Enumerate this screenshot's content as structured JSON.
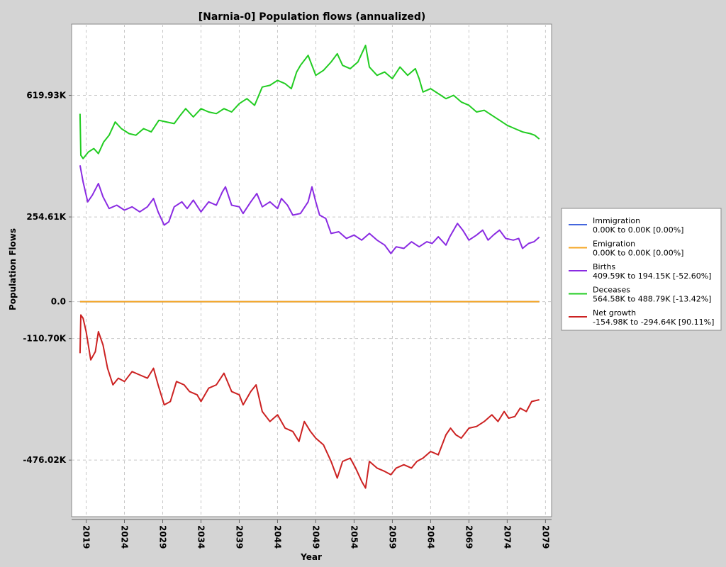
{
  "chart_data": {
    "type": "line",
    "title": "[Narnia-0] Population flows (annualized)",
    "xlabel": "Year",
    "ylabel": "Population Flows",
    "xlim": [
      2017.1,
      2079.8
    ],
    "ylim": [
      -646000,
      834000
    ],
    "grid": true,
    "legend_position": "right",
    "x_ticks": [
      2019,
      2024,
      2029,
      2034,
      2039,
      2044,
      2049,
      2054,
      2059,
      2064,
      2069,
      2074,
      2079
    ],
    "y_ticks": [
      {
        "value": 619930,
        "label": "619.93K"
      },
      {
        "value": 254610,
        "label": "254.61K"
      },
      {
        "value": 0,
        "label": "0.0"
      },
      {
        "value": -110700,
        "label": "-110.70K"
      },
      {
        "value": -476020,
        "label": "-476.02K"
      }
    ],
    "series": [
      {
        "name": "Immigration",
        "detail": "0.00K to 0.00K [0.00%]",
        "color": "#4466dd",
        "points": [
          [
            2018.2,
            0
          ],
          [
            2078.2,
            0
          ]
        ]
      },
      {
        "name": "Emigration",
        "detail": "0.00K to 0.00K [0.00%]",
        "color": "#f5a623",
        "points": [
          [
            2018.2,
            0
          ],
          [
            2078.2,
            0
          ]
        ]
      },
      {
        "name": "Births",
        "detail": "409.59K to 194.15K [-52.60%]",
        "color": "#8a2be2",
        "points": [
          [
            2018.2,
            409590
          ],
          [
            2018.6,
            360000
          ],
          [
            2019.2,
            300000
          ],
          [
            2019.8,
            320000
          ],
          [
            2020.6,
            355000
          ],
          [
            2021.2,
            315000
          ],
          [
            2022.0,
            280000
          ],
          [
            2023.0,
            290000
          ],
          [
            2024.0,
            275000
          ],
          [
            2025.0,
            285000
          ],
          [
            2026.0,
            270000
          ],
          [
            2027.0,
            285000
          ],
          [
            2027.8,
            310000
          ],
          [
            2028.4,
            270000
          ],
          [
            2029.2,
            230000
          ],
          [
            2029.8,
            240000
          ],
          [
            2030.5,
            285000
          ],
          [
            2031.5,
            300000
          ],
          [
            2032.2,
            280000
          ],
          [
            2033.0,
            305000
          ],
          [
            2034.0,
            270000
          ],
          [
            2035.0,
            300000
          ],
          [
            2036.0,
            290000
          ],
          [
            2036.8,
            330000
          ],
          [
            2037.2,
            345000
          ],
          [
            2038.0,
            290000
          ],
          [
            2039.0,
            285000
          ],
          [
            2039.5,
            265000
          ],
          [
            2040.5,
            300000
          ],
          [
            2041.3,
            325000
          ],
          [
            2042.0,
            285000
          ],
          [
            2043.0,
            300000
          ],
          [
            2044.0,
            280000
          ],
          [
            2044.5,
            310000
          ],
          [
            2045.3,
            290000
          ],
          [
            2046.0,
            260000
          ],
          [
            2047.0,
            265000
          ],
          [
            2048.0,
            300000
          ],
          [
            2048.5,
            345000
          ],
          [
            2049.0,
            300000
          ],
          [
            2049.5,
            260000
          ],
          [
            2050.3,
            250000
          ],
          [
            2051.0,
            205000
          ],
          [
            2052.0,
            210000
          ],
          [
            2053.0,
            190000
          ],
          [
            2054.0,
            200000
          ],
          [
            2055.0,
            185000
          ],
          [
            2056.0,
            205000
          ],
          [
            2057.0,
            185000
          ],
          [
            2058.0,
            170000
          ],
          [
            2058.8,
            145000
          ],
          [
            2059.5,
            165000
          ],
          [
            2060.5,
            160000
          ],
          [
            2061.5,
            180000
          ],
          [
            2062.5,
            165000
          ],
          [
            2063.5,
            180000
          ],
          [
            2064.2,
            175000
          ],
          [
            2065.0,
            195000
          ],
          [
            2066.0,
            170000
          ],
          [
            2066.5,
            195000
          ],
          [
            2067.5,
            235000
          ],
          [
            2068.2,
            215000
          ],
          [
            2069.0,
            185000
          ],
          [
            2070.0,
            200000
          ],
          [
            2070.8,
            215000
          ],
          [
            2071.5,
            185000
          ],
          [
            2072.2,
            200000
          ],
          [
            2073.0,
            215000
          ],
          [
            2073.8,
            190000
          ],
          [
            2074.8,
            185000
          ],
          [
            2075.5,
            190000
          ],
          [
            2076.0,
            160000
          ],
          [
            2076.8,
            175000
          ],
          [
            2077.5,
            180000
          ],
          [
            2078.2,
            194150
          ]
        ]
      },
      {
        "name": "Deceases",
        "detail": "564.58K to 488.79K [-13.42%]",
        "color": "#22cc22",
        "points": [
          [
            2018.2,
            564580
          ],
          [
            2018.3,
            440000
          ],
          [
            2018.6,
            430000
          ],
          [
            2019.3,
            450000
          ],
          [
            2020.0,
            460000
          ],
          [
            2020.6,
            445000
          ],
          [
            2021.3,
            480000
          ],
          [
            2022.0,
            500000
          ],
          [
            2022.8,
            540000
          ],
          [
            2023.6,
            520000
          ],
          [
            2024.6,
            505000
          ],
          [
            2025.5,
            500000
          ],
          [
            2026.5,
            520000
          ],
          [
            2027.5,
            510000
          ],
          [
            2028.5,
            545000
          ],
          [
            2029.5,
            540000
          ],
          [
            2030.5,
            535000
          ],
          [
            2031.3,
            560000
          ],
          [
            2032.0,
            580000
          ],
          [
            2033.0,
            555000
          ],
          [
            2034.0,
            580000
          ],
          [
            2035.0,
            570000
          ],
          [
            2036.0,
            565000
          ],
          [
            2037.0,
            580000
          ],
          [
            2038.0,
            570000
          ],
          [
            2039.0,
            595000
          ],
          [
            2040.0,
            610000
          ],
          [
            2041.0,
            590000
          ],
          [
            2042.0,
            645000
          ],
          [
            2043.0,
            650000
          ],
          [
            2044.0,
            665000
          ],
          [
            2045.0,
            655000
          ],
          [
            2045.8,
            640000
          ],
          [
            2046.5,
            690000
          ],
          [
            2047.0,
            710000
          ],
          [
            2048.0,
            740000
          ],
          [
            2049.0,
            680000
          ],
          [
            2050.0,
            695000
          ],
          [
            2051.0,
            720000
          ],
          [
            2051.8,
            745000
          ],
          [
            2052.5,
            710000
          ],
          [
            2053.5,
            700000
          ],
          [
            2054.5,
            720000
          ],
          [
            2055.5,
            770000
          ],
          [
            2056.0,
            705000
          ],
          [
            2057.0,
            680000
          ],
          [
            2058.0,
            690000
          ],
          [
            2059.0,
            670000
          ],
          [
            2060.0,
            705000
          ],
          [
            2061.0,
            680000
          ],
          [
            2062.0,
            700000
          ],
          [
            2062.5,
            670000
          ],
          [
            2063.0,
            630000
          ],
          [
            2064.0,
            640000
          ],
          [
            2065.0,
            625000
          ],
          [
            2066.0,
            610000
          ],
          [
            2067.0,
            620000
          ],
          [
            2068.0,
            600000
          ],
          [
            2069.0,
            590000
          ],
          [
            2070.0,
            570000
          ],
          [
            2071.0,
            575000
          ],
          [
            2072.0,
            560000
          ],
          [
            2073.0,
            545000
          ],
          [
            2074.0,
            530000
          ],
          [
            2075.0,
            520000
          ],
          [
            2076.0,
            510000
          ],
          [
            2077.0,
            505000
          ],
          [
            2077.6,
            500000
          ],
          [
            2078.2,
            488790
          ]
        ]
      },
      {
        "name": "Net growth",
        "detail": "-154.98K to -294.64K [90.11%]",
        "color": "#cc2222",
        "points": [
          [
            2018.2,
            -154980
          ],
          [
            2018.3,
            -40000
          ],
          [
            2018.6,
            -50000
          ],
          [
            2019.0,
            -90000
          ],
          [
            2019.6,
            -175000
          ],
          [
            2020.2,
            -150000
          ],
          [
            2020.6,
            -90000
          ],
          [
            2021.2,
            -130000
          ],
          [
            2021.8,
            -200000
          ],
          [
            2022.5,
            -250000
          ],
          [
            2023.2,
            -230000
          ],
          [
            2024.0,
            -240000
          ],
          [
            2025.0,
            -210000
          ],
          [
            2026.0,
            -220000
          ],
          [
            2027.0,
            -230000
          ],
          [
            2027.8,
            -200000
          ],
          [
            2028.4,
            -250000
          ],
          [
            2029.2,
            -310000
          ],
          [
            2030.0,
            -300000
          ],
          [
            2030.8,
            -240000
          ],
          [
            2031.8,
            -250000
          ],
          [
            2032.5,
            -270000
          ],
          [
            2033.5,
            -280000
          ],
          [
            2034.0,
            -300000
          ],
          [
            2035.0,
            -260000
          ],
          [
            2036.0,
            -250000
          ],
          [
            2037.0,
            -215000
          ],
          [
            2038.0,
            -270000
          ],
          [
            2039.0,
            -280000
          ],
          [
            2039.5,
            -310000
          ],
          [
            2040.5,
            -270000
          ],
          [
            2041.2,
            -250000
          ],
          [
            2042.0,
            -330000
          ],
          [
            2043.0,
            -360000
          ],
          [
            2044.0,
            -340000
          ],
          [
            2045.0,
            -380000
          ],
          [
            2046.0,
            -390000
          ],
          [
            2046.8,
            -420000
          ],
          [
            2047.5,
            -360000
          ],
          [
            2048.3,
            -390000
          ],
          [
            2049.0,
            -410000
          ],
          [
            2050.0,
            -430000
          ],
          [
            2051.0,
            -480000
          ],
          [
            2051.8,
            -530000
          ],
          [
            2052.5,
            -480000
          ],
          [
            2053.5,
            -470000
          ],
          [
            2054.2,
            -500000
          ],
          [
            2055.0,
            -540000
          ],
          [
            2055.5,
            -560000
          ],
          [
            2056.0,
            -480000
          ],
          [
            2057.0,
            -500000
          ],
          [
            2058.0,
            -510000
          ],
          [
            2058.8,
            -520000
          ],
          [
            2059.5,
            -500000
          ],
          [
            2060.5,
            -490000
          ],
          [
            2061.5,
            -500000
          ],
          [
            2062.2,
            -480000
          ],
          [
            2063.0,
            -470000
          ],
          [
            2064.0,
            -450000
          ],
          [
            2065.0,
            -460000
          ],
          [
            2066.0,
            -400000
          ],
          [
            2066.6,
            -380000
          ],
          [
            2067.3,
            -400000
          ],
          [
            2068.0,
            -410000
          ],
          [
            2069.0,
            -380000
          ],
          [
            2070.0,
            -375000
          ],
          [
            2071.0,
            -360000
          ],
          [
            2072.0,
            -340000
          ],
          [
            2072.8,
            -360000
          ],
          [
            2073.6,
            -330000
          ],
          [
            2074.2,
            -350000
          ],
          [
            2075.0,
            -345000
          ],
          [
            2075.7,
            -320000
          ],
          [
            2076.5,
            -330000
          ],
          [
            2077.2,
            -300000
          ],
          [
            2078.2,
            -294640
          ]
        ]
      }
    ]
  }
}
